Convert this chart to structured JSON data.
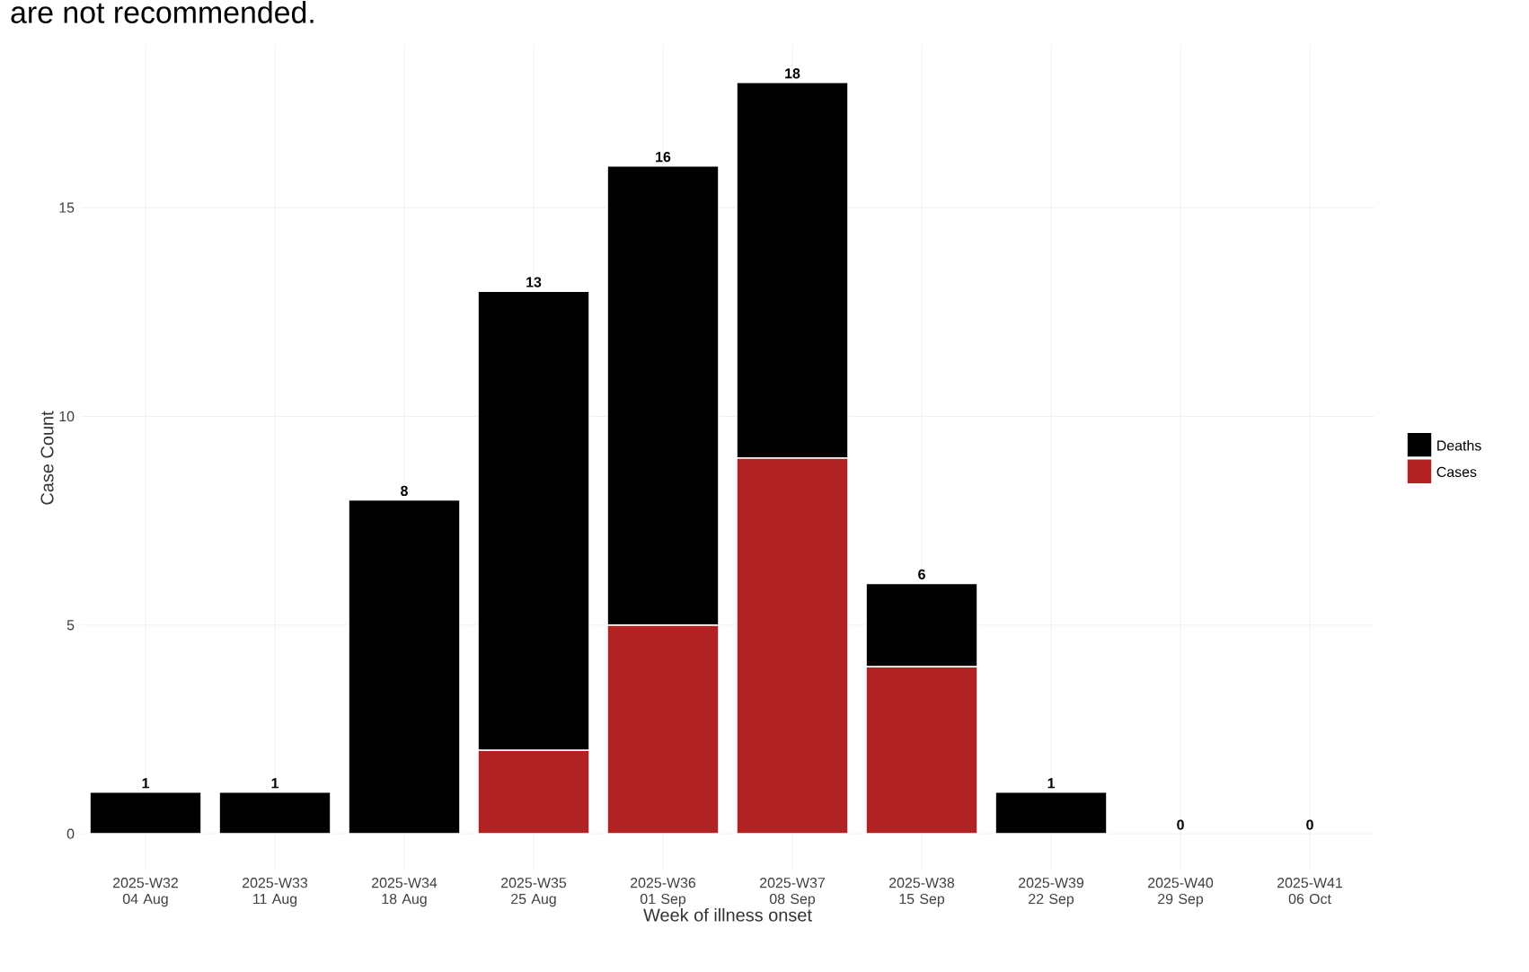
{
  "chart_data": {
    "type": "bar",
    "stacked": true,
    "annotations": [
      "are not recommended."
    ],
    "xlabel": "Week of illness onset",
    "ylabel": "Case Count",
    "categories": [
      "2025-W32 04 Aug",
      "2025-W33 11 Aug",
      "2025-W34 18 Aug",
      "2025-W35 25 Aug",
      "2025-W36 01 Sep",
      "2025-W37 08 Sep",
      "2025-W38 15 Sep",
      "2025-W39 22 Sep",
      "2025-W40 29 Sep",
      "2025-W41 06 Oct"
    ],
    "series": [
      {
        "name": "Cases",
        "color": "#b22222",
        "values": [
          0,
          0,
          0,
          2,
          5,
          9,
          4,
          0,
          0,
          0
        ]
      },
      {
        "name": "Deaths",
        "color": "#000000",
        "values": [
          1,
          1,
          8,
          11,
          11,
          9,
          2,
          1,
          0,
          0
        ]
      }
    ],
    "totals": [
      "1",
      "1",
      "8",
      "13",
      "16",
      "18",
      "6",
      "1",
      "0",
      "0"
    ],
    "ylim": [
      -0.9,
      18.9
    ],
    "yticks": [
      0,
      5,
      10,
      15
    ],
    "grid": true,
    "legend": "right"
  }
}
